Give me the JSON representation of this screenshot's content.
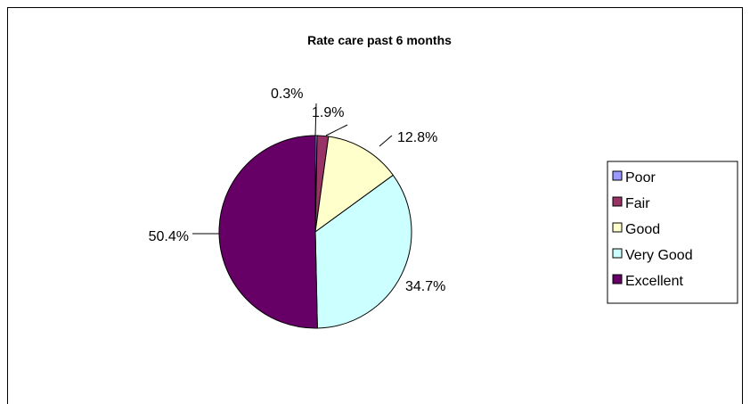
{
  "chart_data": {
    "type": "pie",
    "title": "Rate care past 6 months",
    "categories": [
      "Poor",
      "Fair",
      "Good",
      "Very Good",
      "Excellent"
    ],
    "values": [
      0.3,
      1.9,
      12.8,
      34.7,
      50.4
    ],
    "value_labels": [
      "0.3%",
      "1.9%",
      "12.8%",
      "34.7%",
      "50.4%"
    ],
    "colors": [
      "#9999FF",
      "#993366",
      "#FFFFCC",
      "#CCFFFF",
      "#660066"
    ],
    "legend": "right",
    "start": "top, clockwise"
  }
}
